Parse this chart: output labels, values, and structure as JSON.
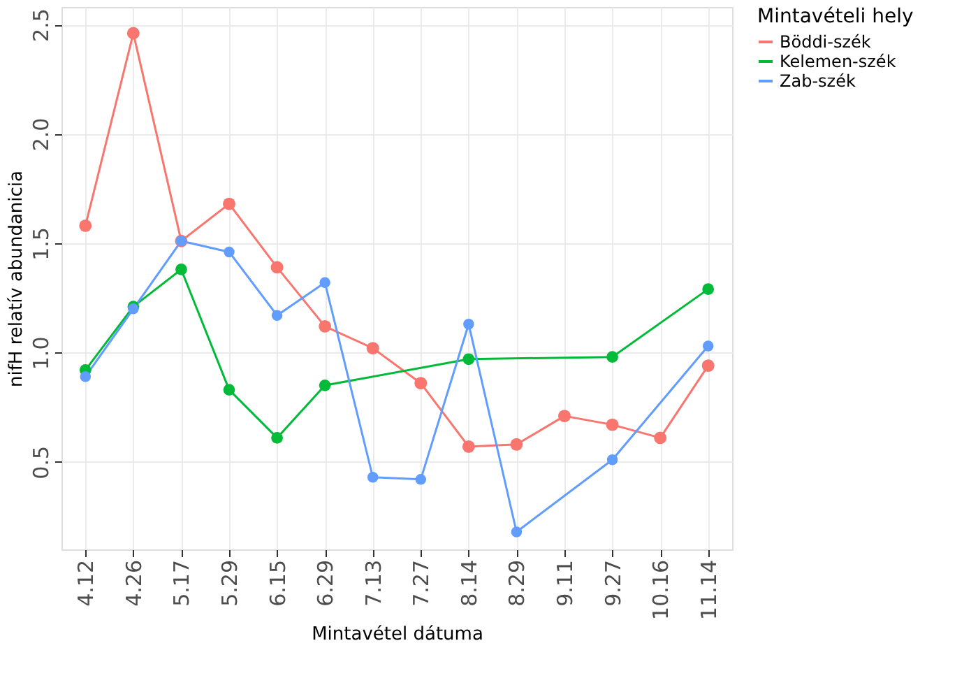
{
  "chart_data": {
    "type": "line",
    "xlabel": "Mintavétel dátuma",
    "ylabel": "nifH relatív abundanicia",
    "legend_title": "Mintavételi hely",
    "categories": [
      "4.12",
      "4.26",
      "5.17",
      "5.29",
      "6.15",
      "6.29",
      "7.13",
      "7.27",
      "8.14",
      "8.29",
      "9.11",
      "9.27",
      "10.16",
      "11.14"
    ],
    "series": [
      {
        "name": "Böddi-szék",
        "color": "#f8766d",
        "values": [
          1.58,
          2.46,
          1.51,
          1.68,
          1.39,
          1.12,
          1.02,
          0.86,
          0.57,
          0.58,
          0.71,
          0.67,
          0.61,
          0.94
        ]
      },
      {
        "name": "Kelemen-szék",
        "color": "#00ba38",
        "values": [
          0.92,
          1.21,
          1.38,
          0.83,
          0.61,
          0.85,
          null,
          null,
          0.97,
          null,
          null,
          0.98,
          null,
          1.29
        ]
      },
      {
        "name": "Zab-szék",
        "color": "#619cff",
        "values": [
          0.89,
          1.2,
          1.51,
          1.46,
          1.17,
          1.32,
          0.43,
          0.42,
          1.13,
          0.18,
          null,
          0.51,
          null,
          1.03
        ]
      }
    ],
    "ylim": [
      0.1,
      2.58
    ],
    "yticks": [
      0.5,
      {
        "value": 1,
        "label": "1.0"
      },
      1.5,
      {
        "value": 2,
        "label": "2.0"
      },
      2.5
    ],
    "grid": true,
    "legend": "right",
    "marker": "circle",
    "line_style": "solid"
  }
}
